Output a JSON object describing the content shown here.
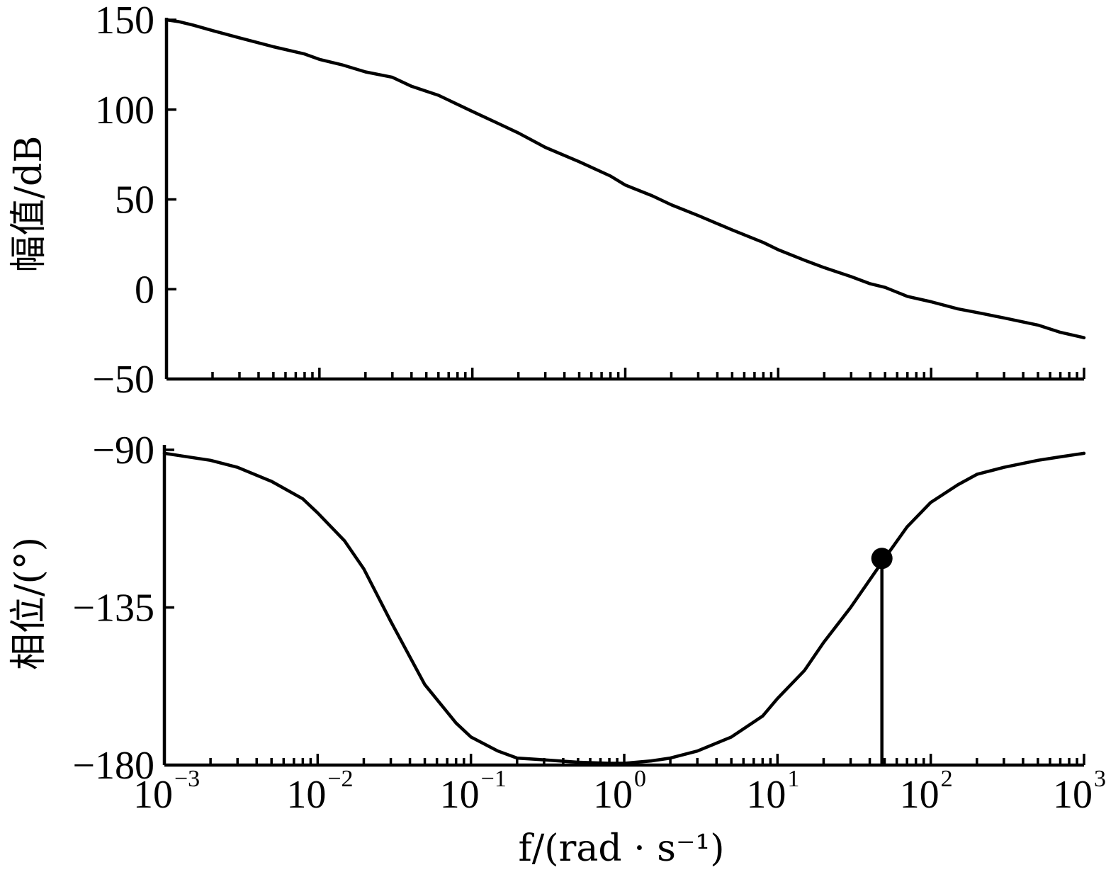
{
  "chart_data": [
    {
      "type": "line",
      "ylabel": "幅值/dB",
      "ylim": [
        -50,
        150
      ],
      "yticks": [
        "150",
        "100",
        "50",
        "0",
        "−50"
      ],
      "ytick_values": [
        150,
        100,
        50,
        0,
        -50
      ],
      "xscale": "log",
      "xlim": [
        0.001,
        1000
      ],
      "series": [
        {
          "x": [
            0.001,
            0.0012,
            0.0015,
            0.002,
            0.003,
            0.005,
            0.008,
            0.01,
            0.014,
            0.02,
            0.03,
            0.04,
            0.06,
            0.1,
            0.15,
            0.2,
            0.3,
            0.5,
            0.8,
            1.0,
            1.5,
            2,
            3,
            5,
            8,
            10,
            15,
            20,
            30,
            40,
            50,
            70,
            100,
            150,
            200,
            300,
            500,
            700,
            1000
          ],
          "y": [
            150,
            149,
            147,
            144,
            140,
            135,
            131,
            128,
            125,
            121,
            118,
            113,
            108,
            99,
            92,
            87,
            79,
            71,
            63,
            58,
            52,
            47,
            41,
            33,
            26,
            22,
            16,
            12,
            7,
            3,
            1,
            -4,
            -7,
            -11,
            -13,
            -16,
            -20,
            -24,
            -27
          ]
        }
      ]
    },
    {
      "type": "line",
      "ylabel": "相位/(°)",
      "xlabel": "f/(rad · s⁻¹)",
      "ylim": [
        -180,
        -90
      ],
      "yticks": [
        "−90",
        "−135",
        "−180"
      ],
      "ytick_values": [
        -90,
        -135,
        -180
      ],
      "xscale": "log",
      "xlim": [
        0.001,
        1000
      ],
      "xticks": [
        {
          "base": "10",
          "exp": "−3"
        },
        {
          "base": "10",
          "exp": "−2"
        },
        {
          "base": "10",
          "exp": "−1"
        },
        {
          "base": "10",
          "exp": "0"
        },
        {
          "base": "10",
          "exp": "1"
        },
        {
          "base": "10",
          "exp": "2"
        },
        {
          "base": "10",
          "exp": "3"
        }
      ],
      "xtick_values": [
        0.001,
        0.01,
        0.1,
        1,
        10,
        100,
        1000
      ],
      "series": [
        {
          "x": [
            0.001,
            0.002,
            0.003,
            0.005,
            0.008,
            0.01,
            0.015,
            0.02,
            0.03,
            0.05,
            0.08,
            0.1,
            0.15,
            0.2,
            0.3,
            0.5,
            0.8,
            1.0,
            1.5,
            2,
            3,
            5,
            8,
            10,
            15,
            20,
            30,
            50,
            70,
            100,
            150,
            200,
            300,
            500,
            700,
            1000
          ],
          "y": [
            -91,
            -93,
            -95,
            -99,
            -104,
            -108,
            -116,
            -124,
            -139,
            -157,
            -168,
            -172,
            -176,
            -178,
            -178.5,
            -179.2,
            -179.5,
            -179.5,
            -178.8,
            -178,
            -176,
            -172,
            -166,
            -161,
            -153,
            -145,
            -135,
            -121,
            -112,
            -105,
            -100,
            -97,
            -95,
            -93,
            -92,
            -91
          ]
        }
      ],
      "annotations": [
        {
          "type": "marker-with-drop-line",
          "x": 48,
          "y": -121
        }
      ]
    }
  ]
}
